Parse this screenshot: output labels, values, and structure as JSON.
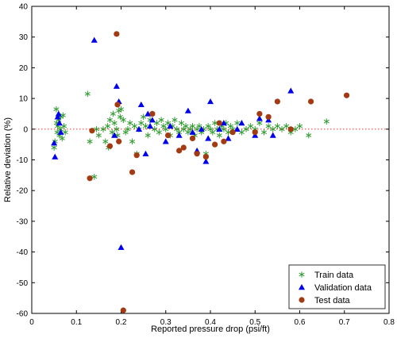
{
  "chart_data": {
    "type": "scatter",
    "title": "",
    "xlabel": "Reported pressure drop (psi/ft)",
    "ylabel": "Relative deviation (%)",
    "xlim": [
      0,
      0.8
    ],
    "ylim": [
      -60,
      40
    ],
    "xticks": [
      0,
      0.1,
      0.2,
      0.3,
      0.4,
      0.5,
      0.6,
      0.7,
      0.8
    ],
    "yticks": [
      -60,
      -50,
      -40,
      -30,
      -20,
      -10,
      0,
      10,
      20,
      30,
      40
    ],
    "xtick_labels": [
      "0",
      "0.1",
      "0.2",
      "0.3",
      "0.4",
      "0.5",
      "0.6",
      "0.7",
      "0.8"
    ],
    "ytick_labels": [
      "-60",
      "-50",
      "-40",
      "-30",
      "-20",
      "-10",
      "0",
      "10",
      "20",
      "30",
      "40"
    ],
    "grid": false,
    "reference_line": {
      "y": 0,
      "style": "dotted",
      "color": "#e03030"
    },
    "legend": {
      "position": "bottom-right"
    },
    "series": [
      {
        "name": "Train data",
        "marker": "asterisk",
        "color": "#2e9b2e",
        "points": [
          [
            0.05,
            -6
          ],
          [
            0.052,
            -4
          ],
          [
            0.055,
            6.5
          ],
          [
            0.056,
            2
          ],
          [
            0.057,
            -1
          ],
          [
            0.058,
            1
          ],
          [
            0.06,
            3
          ],
          [
            0.062,
            -2
          ],
          [
            0.064,
            0
          ],
          [
            0.065,
            4
          ],
          [
            0.068,
            -3
          ],
          [
            0.07,
            4.5
          ],
          [
            0.072,
            1
          ],
          [
            0.075,
            -1
          ],
          [
            0.125,
            11.5
          ],
          [
            0.13,
            -4
          ],
          [
            0.14,
            -15.5
          ],
          [
            0.145,
            0
          ],
          [
            0.15,
            -2
          ],
          [
            0.16,
            0
          ],
          [
            0.165,
            -4
          ],
          [
            0.17,
            1
          ],
          [
            0.172,
            -6
          ],
          [
            0.175,
            3
          ],
          [
            0.18,
            -1
          ],
          [
            0.182,
            5
          ],
          [
            0.185,
            2
          ],
          [
            0.19,
            0
          ],
          [
            0.192,
            -2
          ],
          [
            0.195,
            6
          ],
          [
            0.198,
            4
          ],
          [
            0.2,
            6.5
          ],
          [
            0.205,
            3
          ],
          [
            0.21,
            -1
          ],
          [
            0.215,
            0
          ],
          [
            0.22,
            2
          ],
          [
            0.225,
            -4
          ],
          [
            0.23,
            1
          ],
          [
            0.235,
            -8
          ],
          [
            0.24,
            0
          ],
          [
            0.245,
            2
          ],
          [
            0.25,
            4
          ],
          [
            0.255,
            1
          ],
          [
            0.26,
            -2
          ],
          [
            0.265,
            3
          ],
          [
            0.27,
            5
          ],
          [
            0.275,
            0
          ],
          [
            0.28,
            2
          ],
          [
            0.285,
            -1
          ],
          [
            0.29,
            3
          ],
          [
            0.295,
            1
          ],
          [
            0.3,
            0
          ],
          [
            0.305,
            2
          ],
          [
            0.31,
            -2
          ],
          [
            0.315,
            1
          ],
          [
            0.32,
            3
          ],
          [
            0.325,
            0
          ],
          [
            0.33,
            -1
          ],
          [
            0.335,
            2
          ],
          [
            0.34,
            0
          ],
          [
            0.345,
            1
          ],
          [
            0.35,
            -1
          ],
          [
            0.355,
            0
          ],
          [
            0.36,
            1
          ],
          [
            0.365,
            -2
          ],
          [
            0.37,
            0
          ],
          [
            0.375,
            1
          ],
          [
            0.38,
            -1
          ],
          [
            0.385,
            0
          ],
          [
            0.39,
            -8
          ],
          [
            0.395,
            1
          ],
          [
            0.4,
            0
          ],
          [
            0.405,
            -1
          ],
          [
            0.41,
            2
          ],
          [
            0.415,
            0
          ],
          [
            0.42,
            -2
          ],
          [
            0.425,
            1
          ],
          [
            0.43,
            0
          ],
          [
            0.435,
            2
          ],
          [
            0.44,
            -1
          ],
          [
            0.445,
            1
          ],
          [
            0.45,
            0
          ],
          [
            0.46,
            2
          ],
          [
            0.47,
            -1
          ],
          [
            0.48,
            0
          ],
          [
            0.49,
            1
          ],
          [
            0.5,
            0
          ],
          [
            0.51,
            2
          ],
          [
            0.52,
            -1
          ],
          [
            0.53,
            1
          ],
          [
            0.54,
            0
          ],
          [
            0.55,
            1
          ],
          [
            0.56,
            0
          ],
          [
            0.57,
            1
          ],
          [
            0.58,
            -1
          ],
          [
            0.59,
            0
          ],
          [
            0.6,
            1
          ],
          [
            0.62,
            -2
          ],
          [
            0.66,
            2.5
          ]
        ]
      },
      {
        "name": "Validation data",
        "marker": "triangle",
        "color": "#0000ee",
        "points": [
          [
            0.05,
            -4.5
          ],
          [
            0.052,
            -9
          ],
          [
            0.058,
            4
          ],
          [
            0.06,
            5
          ],
          [
            0.062,
            2
          ],
          [
            0.065,
            -1
          ],
          [
            0.14,
            29
          ],
          [
            0.185,
            -2
          ],
          [
            0.19,
            14
          ],
          [
            0.195,
            9
          ],
          [
            0.2,
            -38.5
          ],
          [
            0.24,
            0
          ],
          [
            0.245,
            8
          ],
          [
            0.255,
            -8
          ],
          [
            0.26,
            5
          ],
          [
            0.265,
            1
          ],
          [
            0.27,
            3
          ],
          [
            0.3,
            -4
          ],
          [
            0.31,
            1
          ],
          [
            0.33,
            -2
          ],
          [
            0.35,
            6
          ],
          [
            0.36,
            -1
          ],
          [
            0.37,
            -7
          ],
          [
            0.38,
            0
          ],
          [
            0.39,
            -10.5
          ],
          [
            0.395,
            -3
          ],
          [
            0.4,
            9
          ],
          [
            0.42,
            0
          ],
          [
            0.43,
            2
          ],
          [
            0.44,
            -3
          ],
          [
            0.46,
            0
          ],
          [
            0.47,
            2
          ],
          [
            0.5,
            -2
          ],
          [
            0.51,
            3.5
          ],
          [
            0.53,
            3
          ],
          [
            0.54,
            -2
          ],
          [
            0.58,
            12.5
          ]
        ]
      },
      {
        "name": "Test data",
        "marker": "circle",
        "color": "#a33a12",
        "points": [
          [
            0.13,
            -16
          ],
          [
            0.135,
            -0.5
          ],
          [
            0.175,
            -5.5
          ],
          [
            0.19,
            31
          ],
          [
            0.192,
            8
          ],
          [
            0.195,
            -4
          ],
          [
            0.205,
            -59
          ],
          [
            0.225,
            -14
          ],
          [
            0.235,
            -8.5
          ],
          [
            0.27,
            5
          ],
          [
            0.305,
            -2
          ],
          [
            0.33,
            -7
          ],
          [
            0.34,
            -6
          ],
          [
            0.36,
            -3
          ],
          [
            0.37,
            -8
          ],
          [
            0.39,
            -9
          ],
          [
            0.41,
            -5
          ],
          [
            0.42,
            2
          ],
          [
            0.43,
            -4
          ],
          [
            0.45,
            -1
          ],
          [
            0.5,
            -1
          ],
          [
            0.51,
            5
          ],
          [
            0.53,
            4
          ],
          [
            0.55,
            9
          ],
          [
            0.58,
            0
          ],
          [
            0.625,
            9
          ],
          [
            0.705,
            11
          ]
        ]
      }
    ]
  }
}
